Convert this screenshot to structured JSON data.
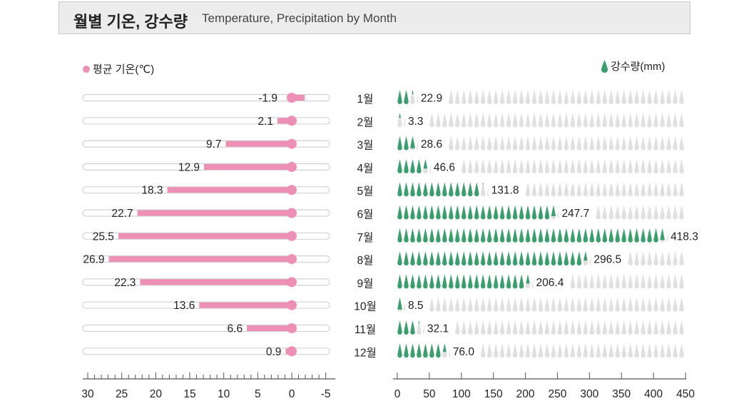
{
  "header": {
    "title": "월별 기온, 강수량",
    "subtitle": "Temperature, Precipitation by Month"
  },
  "legend": {
    "temperature": "평균 기온(℃)",
    "precipitation": "강수량(mm)"
  },
  "colors": {
    "temperature": "#ee8fb5",
    "precipitation": "#3a9e6d",
    "drop_empty": "#e0e0e0",
    "track_border": "#d2d2d2",
    "axis": "#555555",
    "title_bg": "#ececec"
  },
  "icons": {
    "temperature": "pink-dot-icon",
    "precipitation": "water-drop-icon"
  },
  "chart_data": [
    {
      "type": "bar",
      "orientation": "horizontal",
      "series": [
        {
          "name": "평균 기온(℃)",
          "values": [
            -1.9,
            2.1,
            9.7,
            12.9,
            18.3,
            22.7,
            25.5,
            26.9,
            22.3,
            13.6,
            6.6,
            0.9
          ]
        }
      ],
      "categories": [
        "1월",
        "2월",
        "3월",
        "4월",
        "5월",
        "6월",
        "7월",
        "8월",
        "9월",
        "10월",
        "11월",
        "12월"
      ],
      "xlim": [
        30,
        -5
      ],
      "xticks": [
        30,
        25,
        20,
        15,
        10,
        5,
        0,
        -5
      ],
      "data_labels": [
        "-1.9",
        "2.1",
        "9.7",
        "12.9",
        "18.3",
        "22.7",
        "25.5",
        "26.9",
        "22.3",
        "13.6",
        "6.6",
        "0.9"
      ]
    },
    {
      "type": "bar",
      "orientation": "horizontal",
      "series": [
        {
          "name": "강수량(mm)",
          "values": [
            22.9,
            3.3,
            28.6,
            46.6,
            131.8,
            247.7,
            418.3,
            296.5,
            206.4,
            8.5,
            32.1,
            76.0
          ]
        }
      ],
      "categories": [
        "1월",
        "2월",
        "3월",
        "4월",
        "5월",
        "6월",
        "7월",
        "8월",
        "9월",
        "10월",
        "11월",
        "12월"
      ],
      "xlim": [
        0,
        450
      ],
      "xticks": [
        0,
        50,
        100,
        150,
        200,
        250,
        300,
        350,
        400,
        450
      ],
      "data_labels": [
        "22.9",
        "3.3",
        "28.6",
        "46.6",
        "131.8",
        "247.7",
        "418.3",
        "296.5",
        "206.4",
        "8.5",
        "32.1",
        "76.0"
      ],
      "unit_per_drop": 10
    }
  ]
}
